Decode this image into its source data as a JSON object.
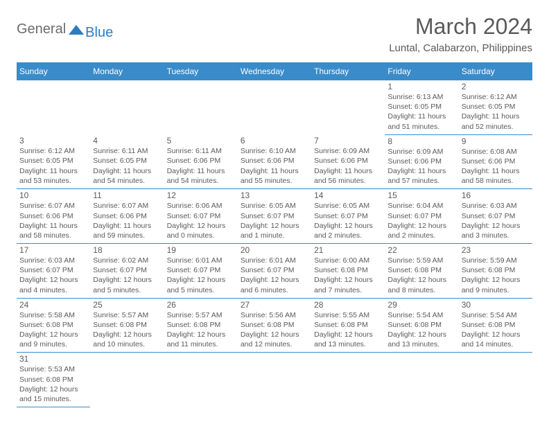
{
  "logo": {
    "part1": "General",
    "part2": "Blue"
  },
  "title": "March 2024",
  "subtitle": "Luntal, Calabarzon, Philippines",
  "colors": {
    "header_bg": "#3a8bc9",
    "text": "#5a5a5a",
    "logo_gray": "#6b6b6b",
    "logo_blue": "#2d7cc0"
  },
  "daynames": [
    "Sunday",
    "Monday",
    "Tuesday",
    "Wednesday",
    "Thursday",
    "Friday",
    "Saturday"
  ],
  "weeks": [
    [
      null,
      null,
      null,
      null,
      null,
      {
        "n": "1",
        "sr": "Sunrise: 6:13 AM",
        "ss": "Sunset: 6:05 PM",
        "dl": "Daylight: 11 hours and 51 minutes."
      },
      {
        "n": "2",
        "sr": "Sunrise: 6:12 AM",
        "ss": "Sunset: 6:05 PM",
        "dl": "Daylight: 11 hours and 52 minutes."
      }
    ],
    [
      {
        "n": "3",
        "sr": "Sunrise: 6:12 AM",
        "ss": "Sunset: 6:05 PM",
        "dl": "Daylight: 11 hours and 53 minutes."
      },
      {
        "n": "4",
        "sr": "Sunrise: 6:11 AM",
        "ss": "Sunset: 6:05 PM",
        "dl": "Daylight: 11 hours and 54 minutes."
      },
      {
        "n": "5",
        "sr": "Sunrise: 6:11 AM",
        "ss": "Sunset: 6:06 PM",
        "dl": "Daylight: 11 hours and 54 minutes."
      },
      {
        "n": "6",
        "sr": "Sunrise: 6:10 AM",
        "ss": "Sunset: 6:06 PM",
        "dl": "Daylight: 11 hours and 55 minutes."
      },
      {
        "n": "7",
        "sr": "Sunrise: 6:09 AM",
        "ss": "Sunset: 6:06 PM",
        "dl": "Daylight: 11 hours and 56 minutes."
      },
      {
        "n": "8",
        "sr": "Sunrise: 6:09 AM",
        "ss": "Sunset: 6:06 PM",
        "dl": "Daylight: 11 hours and 57 minutes."
      },
      {
        "n": "9",
        "sr": "Sunrise: 6:08 AM",
        "ss": "Sunset: 6:06 PM",
        "dl": "Daylight: 11 hours and 58 minutes."
      }
    ],
    [
      {
        "n": "10",
        "sr": "Sunrise: 6:07 AM",
        "ss": "Sunset: 6:06 PM",
        "dl": "Daylight: 11 hours and 58 minutes."
      },
      {
        "n": "11",
        "sr": "Sunrise: 6:07 AM",
        "ss": "Sunset: 6:06 PM",
        "dl": "Daylight: 11 hours and 59 minutes."
      },
      {
        "n": "12",
        "sr": "Sunrise: 6:06 AM",
        "ss": "Sunset: 6:07 PM",
        "dl": "Daylight: 12 hours and 0 minutes."
      },
      {
        "n": "13",
        "sr": "Sunrise: 6:05 AM",
        "ss": "Sunset: 6:07 PM",
        "dl": "Daylight: 12 hours and 1 minute."
      },
      {
        "n": "14",
        "sr": "Sunrise: 6:05 AM",
        "ss": "Sunset: 6:07 PM",
        "dl": "Daylight: 12 hours and 2 minutes."
      },
      {
        "n": "15",
        "sr": "Sunrise: 6:04 AM",
        "ss": "Sunset: 6:07 PM",
        "dl": "Daylight: 12 hours and 2 minutes."
      },
      {
        "n": "16",
        "sr": "Sunrise: 6:03 AM",
        "ss": "Sunset: 6:07 PM",
        "dl": "Daylight: 12 hours and 3 minutes."
      }
    ],
    [
      {
        "n": "17",
        "sr": "Sunrise: 6:03 AM",
        "ss": "Sunset: 6:07 PM",
        "dl": "Daylight: 12 hours and 4 minutes."
      },
      {
        "n": "18",
        "sr": "Sunrise: 6:02 AM",
        "ss": "Sunset: 6:07 PM",
        "dl": "Daylight: 12 hours and 5 minutes."
      },
      {
        "n": "19",
        "sr": "Sunrise: 6:01 AM",
        "ss": "Sunset: 6:07 PM",
        "dl": "Daylight: 12 hours and 5 minutes."
      },
      {
        "n": "20",
        "sr": "Sunrise: 6:01 AM",
        "ss": "Sunset: 6:07 PM",
        "dl": "Daylight: 12 hours and 6 minutes."
      },
      {
        "n": "21",
        "sr": "Sunrise: 6:00 AM",
        "ss": "Sunset: 6:08 PM",
        "dl": "Daylight: 12 hours and 7 minutes."
      },
      {
        "n": "22",
        "sr": "Sunrise: 5:59 AM",
        "ss": "Sunset: 6:08 PM",
        "dl": "Daylight: 12 hours and 8 minutes."
      },
      {
        "n": "23",
        "sr": "Sunrise: 5:59 AM",
        "ss": "Sunset: 6:08 PM",
        "dl": "Daylight: 12 hours and 9 minutes."
      }
    ],
    [
      {
        "n": "24",
        "sr": "Sunrise: 5:58 AM",
        "ss": "Sunset: 6:08 PM",
        "dl": "Daylight: 12 hours and 9 minutes."
      },
      {
        "n": "25",
        "sr": "Sunrise: 5:57 AM",
        "ss": "Sunset: 6:08 PM",
        "dl": "Daylight: 12 hours and 10 minutes."
      },
      {
        "n": "26",
        "sr": "Sunrise: 5:57 AM",
        "ss": "Sunset: 6:08 PM",
        "dl": "Daylight: 12 hours and 11 minutes."
      },
      {
        "n": "27",
        "sr": "Sunrise: 5:56 AM",
        "ss": "Sunset: 6:08 PM",
        "dl": "Daylight: 12 hours and 12 minutes."
      },
      {
        "n": "28",
        "sr": "Sunrise: 5:55 AM",
        "ss": "Sunset: 6:08 PM",
        "dl": "Daylight: 12 hours and 13 minutes."
      },
      {
        "n": "29",
        "sr": "Sunrise: 5:54 AM",
        "ss": "Sunset: 6:08 PM",
        "dl": "Daylight: 12 hours and 13 minutes."
      },
      {
        "n": "30",
        "sr": "Sunrise: 5:54 AM",
        "ss": "Sunset: 6:08 PM",
        "dl": "Daylight: 12 hours and 14 minutes."
      }
    ],
    [
      {
        "n": "31",
        "sr": "Sunrise: 5:53 AM",
        "ss": "Sunset: 6:08 PM",
        "dl": "Daylight: 12 hours and 15 minutes."
      },
      null,
      null,
      null,
      null,
      null,
      null
    ]
  ]
}
